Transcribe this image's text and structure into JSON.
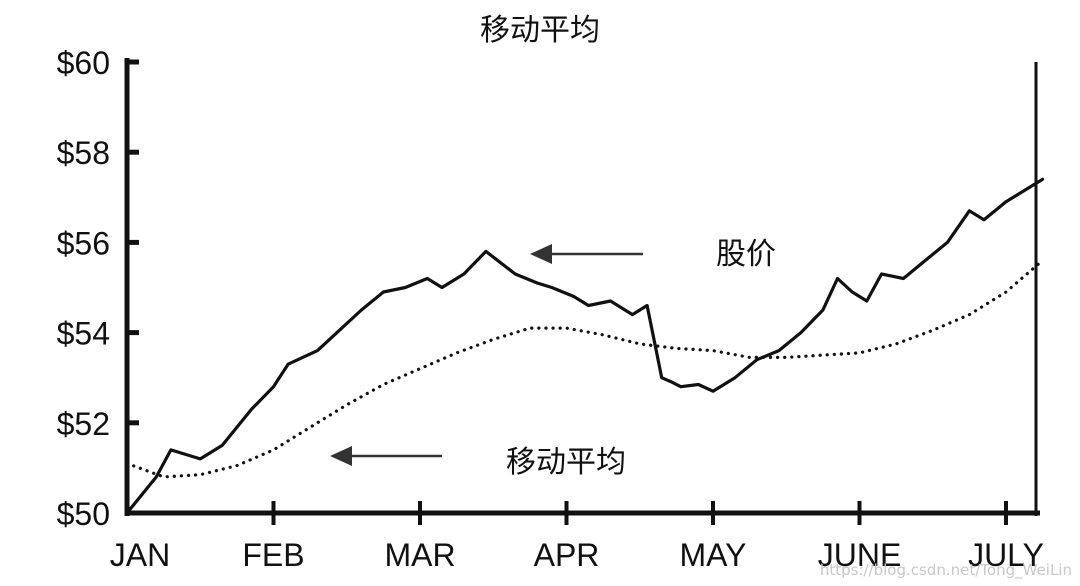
{
  "chart_data": {
    "type": "line",
    "title": "移动平均",
    "xlabel": "",
    "ylabel": "",
    "x_tick_labels": [
      "JAN",
      "FEB",
      "MAR",
      "APR",
      "MAY",
      "JUNE",
      "JULY"
    ],
    "y_tick_labels": [
      "$50",
      "$52",
      "$54",
      "$56",
      "$58",
      "$60"
    ],
    "ylim": [
      50,
      60
    ],
    "xlim": [
      0,
      6.25
    ],
    "grid": false,
    "legend": "none",
    "series": [
      {
        "name": "股价",
        "style": "solid",
        "x": [
          0,
          0.2,
          0.3,
          0.45,
          0.5,
          0.65,
          0.85,
          1.0,
          1.1,
          1.3,
          1.4,
          1.6,
          1.75,
          1.9,
          2.05,
          2.15,
          2.3,
          2.45,
          2.65,
          2.8,
          2.9,
          3.05,
          3.15,
          3.3,
          3.45,
          3.55,
          3.6,
          3.65,
          3.72,
          3.78,
          3.9,
          4.0,
          4.15,
          4.3,
          4.45,
          4.6,
          4.75,
          4.85,
          4.95,
          5.05,
          5.15,
          5.3,
          5.45,
          5.6,
          5.75,
          5.85,
          6.0,
          6.15,
          6.25
        ],
        "values": [
          50.0,
          50.8,
          51.4,
          51.25,
          51.2,
          51.5,
          52.3,
          52.8,
          53.3,
          53.6,
          53.9,
          54.5,
          54.9,
          55.0,
          55.2,
          55.0,
          55.3,
          55.8,
          55.3,
          55.1,
          55.0,
          54.8,
          54.6,
          54.7,
          54.4,
          54.6,
          53.8,
          53.0,
          52.9,
          52.8,
          52.85,
          52.7,
          53.0,
          53.4,
          53.6,
          54.0,
          54.5,
          55.2,
          54.9,
          54.7,
          55.3,
          55.2,
          55.6,
          56.0,
          56.7,
          56.5,
          56.9,
          57.2,
          57.4
        ]
      },
      {
        "name": "移动平均",
        "style": "dotted",
        "x": [
          0,
          0.25,
          0.5,
          0.75,
          1.0,
          1.25,
          1.5,
          1.75,
          2.0,
          2.25,
          2.5,
          2.75,
          3.0,
          3.25,
          3.5,
          3.75,
          4.0,
          4.25,
          4.5,
          4.75,
          5.0,
          5.25,
          5.5,
          5.75,
          6.0,
          6.25
        ],
        "values": [
          51.1,
          50.8,
          50.85,
          51.05,
          51.4,
          51.9,
          52.4,
          52.85,
          53.2,
          53.55,
          53.85,
          54.1,
          54.1,
          53.95,
          53.75,
          53.65,
          53.6,
          53.45,
          53.45,
          53.5,
          53.55,
          53.75,
          54.05,
          54.4,
          54.9,
          55.6
        ]
      }
    ],
    "annotations": [
      {
        "text": "股价",
        "target_series": "股价"
      },
      {
        "text": "移动平均",
        "target_series": "移动平均"
      }
    ]
  },
  "watermark": "https://blog.csdn.net/Tong_WeiLin",
  "colors": {
    "line": "#111111",
    "arrow": "#333333",
    "watermark": "#c8c8c8"
  }
}
